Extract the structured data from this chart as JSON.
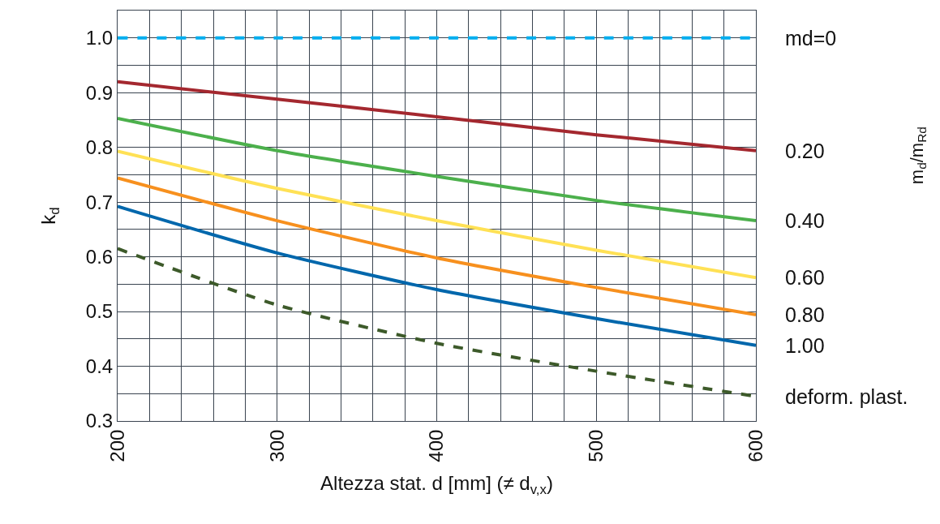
{
  "chart_data": {
    "type": "line",
    "xlabel": "Altezza stat. d [mm] (≠ d$_{v,x}$)",
    "ylabel": "k$_{d}$",
    "annotations": [
      "m$_{d}$/m$_{Rd}$"
    ],
    "x": [
      200,
      300,
      400,
      500,
      600
    ],
    "series": [
      {
        "name": "md=0",
        "color": "#00aeef",
        "line_style": "dashed",
        "values": [
          1.0,
          1.0,
          1.0,
          1.0,
          1.0
        ]
      },
      {
        "name": "0.20",
        "color": "#a4282f",
        "line_style": "solid",
        "values": [
          0.92,
          0.888,
          0.856,
          0.823,
          0.794
        ]
      },
      {
        "name": "0.40",
        "color": "#4cb04c",
        "line_style": "solid",
        "values": [
          0.853,
          0.794,
          0.747,
          0.703,
          0.666
        ]
      },
      {
        "name": "0.60",
        "color": "#ffe155",
        "line_style": "solid",
        "values": [
          0.793,
          0.725,
          0.666,
          0.612,
          0.562
        ]
      },
      {
        "name": "0.80",
        "color": "#f7901e",
        "line_style": "solid",
        "values": [
          0.744,
          0.666,
          0.598,
          0.544,
          0.494
        ]
      },
      {
        "name": "1.00",
        "color": "#0067ac",
        "line_style": "solid",
        "values": [
          0.692,
          0.607,
          0.54,
          0.487,
          0.438
        ]
      },
      {
        "name": "deform. plast.",
        "color": "#3d5a2a",
        "line_style": "dashed",
        "values": [
          0.615,
          0.512,
          0.442,
          0.391,
          0.345
        ]
      }
    ],
    "xlim": [
      200,
      600
    ],
    "xticks": [
      200,
      {
        "value": 220,
        "label": null
      },
      {
        "value": 240,
        "label": null
      },
      {
        "value": 260,
        "label": null
      },
      {
        "value": 280,
        "label": null
      },
      300,
      {
        "value": 320,
        "label": null
      },
      {
        "value": 340,
        "label": null
      },
      {
        "value": 360,
        "label": null
      },
      {
        "value": 380,
        "label": null
      },
      400,
      {
        "value": 420,
        "label": null
      },
      {
        "value": 440,
        "label": null
      },
      {
        "value": 460,
        "label": null
      },
      {
        "value": 480,
        "label": null
      },
      500,
      {
        "value": 520,
        "label": null
      },
      {
        "value": 540,
        "label": null
      },
      {
        "value": 560,
        "label": null
      },
      {
        "value": 580,
        "label": null
      },
      600
    ],
    "ylim": [
      0.3,
      1.05
    ],
    "yticks": [
      {
        "value": 0.3,
        "label": "0.3"
      },
      {
        "value": 0.35,
        "label": null
      },
      {
        "value": 0.4,
        "label": "0.4"
      },
      {
        "value": 0.45,
        "label": null
      },
      {
        "value": 0.5,
        "label": "0.5"
      },
      {
        "value": 0.55,
        "label": null
      },
      {
        "value": 0.6,
        "label": "0.6"
      },
      {
        "value": 0.65,
        "label": null
      },
      {
        "value": 0.7,
        "label": "0.7"
      },
      {
        "value": 0.75,
        "label": null
      },
      {
        "value": 0.8,
        "label": "0.8"
      },
      {
        "value": 0.85,
        "label": null
      },
      {
        "value": 0.9,
        "label": "0.9"
      },
      {
        "value": 0.95,
        "label": null
      },
      {
        "value": 1.0,
        "label": "1.0"
      }
    ],
    "grid": true,
    "legend": false,
    "marker": "none"
  }
}
